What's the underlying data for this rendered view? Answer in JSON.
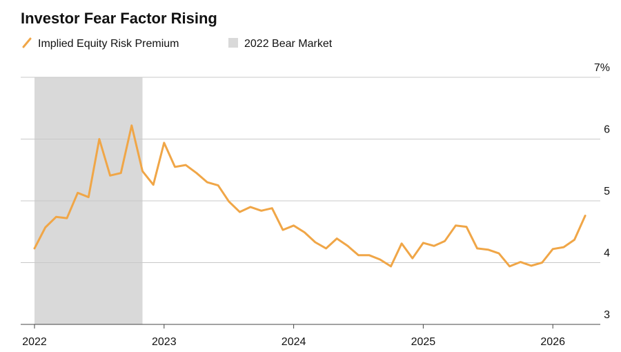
{
  "chart_data": {
    "type": "line",
    "title": "Investor Fear Factor Rising",
    "categories": [
      "2022",
      null,
      null,
      null,
      null,
      null,
      null,
      null,
      null,
      null,
      null,
      null,
      "2023",
      null,
      null,
      null,
      null,
      null,
      null,
      null,
      null,
      null,
      null,
      null,
      "2024",
      null,
      null,
      null,
      null,
      null,
      null,
      null,
      null,
      null,
      null,
      null,
      "2025",
      null,
      null,
      null,
      null,
      null,
      null,
      null,
      null,
      null,
      null,
      null,
      "2026",
      null,
      null,
      null
    ],
    "series": [
      {
        "name": "Implied Equity Risk Premium",
        "color": "#f0a647",
        "values": [
          4.23,
          4.57,
          4.74,
          4.72,
          5.13,
          5.06,
          6.0,
          5.41,
          5.45,
          6.22,
          5.48,
          5.26,
          5.94,
          5.55,
          5.58,
          5.45,
          5.3,
          5.25,
          4.99,
          4.82,
          4.9,
          4.84,
          4.88,
          4.53,
          4.6,
          4.49,
          4.33,
          4.23,
          4.39,
          4.27,
          4.12,
          4.12,
          4.05,
          3.94,
          4.31,
          4.07,
          4.32,
          4.27,
          4.35,
          4.6,
          4.58,
          4.23,
          4.21,
          4.15,
          3.94,
          4.01,
          3.95,
          4.0,
          4.22,
          4.25,
          4.37,
          4.76
        ]
      }
    ],
    "shade": {
      "name": "2022 Bear Market",
      "color": "#d9d9d9",
      "start": 0,
      "end": 10
    },
    "ylim": [
      3,
      7
    ],
    "yticks": [
      3,
      4,
      5,
      6,
      {
        "value": 7,
        "label": "7%"
      }
    ],
    "grid": true
  }
}
